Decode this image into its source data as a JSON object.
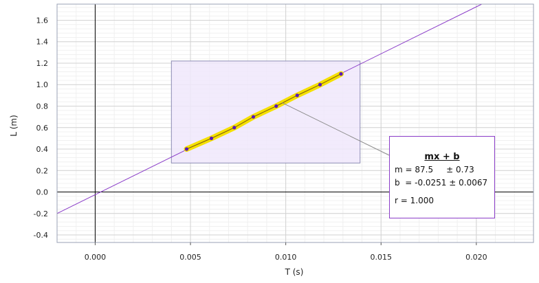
{
  "chart_data": {
    "type": "scatter",
    "xlabel": "T (s)",
    "ylabel": "L (m)",
    "xlim": [
      -0.002,
      0.023
    ],
    "ylim": [
      -0.47,
      1.75
    ],
    "x_ticks": [
      0.0,
      0.005,
      0.01,
      0.015,
      0.02
    ],
    "x_tick_labels": [
      "0.000",
      "0.005",
      "0.010",
      "0.015",
      "0.020"
    ],
    "y_ticks": [
      -0.4,
      -0.2,
      0.0,
      0.2,
      0.4,
      0.6,
      0.8,
      1.0,
      1.2,
      1.4,
      1.6
    ],
    "y_tick_labels": [
      "-0.4",
      "-0.2",
      "0.0",
      "0.2",
      "0.4",
      "0.6",
      "0.8",
      "1.0",
      "1.2",
      "1.4",
      "1.6"
    ],
    "grid": true,
    "points": [
      {
        "x": 0.0048,
        "y": 0.4
      },
      {
        "x": 0.0061,
        "y": 0.5
      },
      {
        "x": 0.0073,
        "y": 0.6
      },
      {
        "x": 0.0083,
        "y": 0.7
      },
      {
        "x": 0.0095,
        "y": 0.8
      },
      {
        "x": 0.0106,
        "y": 0.9
      },
      {
        "x": 0.0118,
        "y": 1.0
      },
      {
        "x": 0.0129,
        "y": 1.1
      }
    ],
    "fit": {
      "slope": 87.5,
      "intercept": -0.0251
    },
    "selection": {
      "x_range": [
        0.004,
        0.0139
      ],
      "y_range": [
        0.27,
        1.22
      ]
    },
    "colors": {
      "fit_line": "#8a3cc8",
      "highlight": "#f5e000",
      "point": "#5a1ab8",
      "selection_fill": "#f0e8fb",
      "selection_border": "#8c8cb4"
    }
  },
  "fit_box": {
    "title": "mx + b",
    "m_line": "m = 87.5     ± 0.73",
    "b_line": "b  = -0.0251 ± 0.0067",
    "r_line": "r = 1.000"
  }
}
